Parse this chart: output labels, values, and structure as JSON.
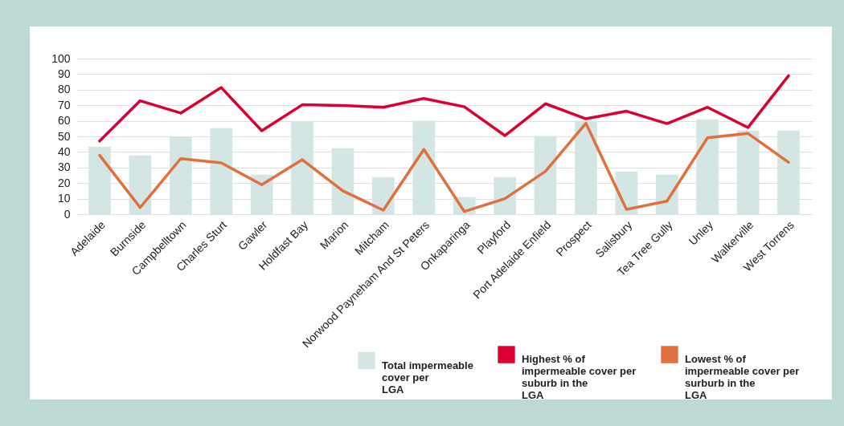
{
  "chart_data": {
    "type": "bar",
    "categories": [
      "Adelaide",
      "Burnside",
      "Campbelltown",
      "Charles Sturt",
      "Gawler",
      "Holdfast Bay",
      "Marion",
      "Mitcham",
      "Norwood Payneham And St Peters",
      "Onkaparinga",
      "Playford",
      "Port Adelaide Enfield",
      "Prospect",
      "Salisbury",
      "Tea Tree Gully",
      "Unley",
      "Walkerville",
      "West Torrens"
    ],
    "series": [
      {
        "name": "Total impermeable cover per LGA",
        "color": "#d3e6e3",
        "values": [
          43.3,
          37.8,
          49.8,
          55.3,
          25.4,
          59.5,
          42.4,
          23.9,
          60.1,
          11,
          23.9,
          50.2,
          60.1,
          27.5,
          25.4,
          61,
          53.8,
          53.8
        ]
      },
      {
        "name": "Highest % of impermeable cover per suburb in the LGA",
        "type": "line",
        "color": "#dc0032",
        "values": [
          47,
          72.9,
          65,
          81.4,
          53.6,
          70.3,
          69.8,
          68.7,
          74.4,
          69,
          50.5,
          71,
          61.3,
          66.2,
          58.2,
          68.7,
          55.7,
          89
        ]
      },
      {
        "name": "Lowest % of impermeable cover per surburb in the LGA",
        "type": "line",
        "color": "#e07040",
        "values": [
          37.8,
          4.3,
          35.7,
          33,
          18.9,
          35,
          15,
          2.6,
          41.6,
          1.7,
          10,
          27.5,
          58.4,
          3.1,
          8.4,
          49.1,
          51.9,
          33.3
        ]
      }
    ],
    "ylim": [
      0,
      100
    ],
    "yticks": [
      0,
      10,
      20,
      30,
      40,
      50,
      60,
      70,
      80,
      90,
      100
    ],
    "grid": "y",
    "legend": "bottom right",
    "line_style": "solid",
    "marker": "none"
  }
}
